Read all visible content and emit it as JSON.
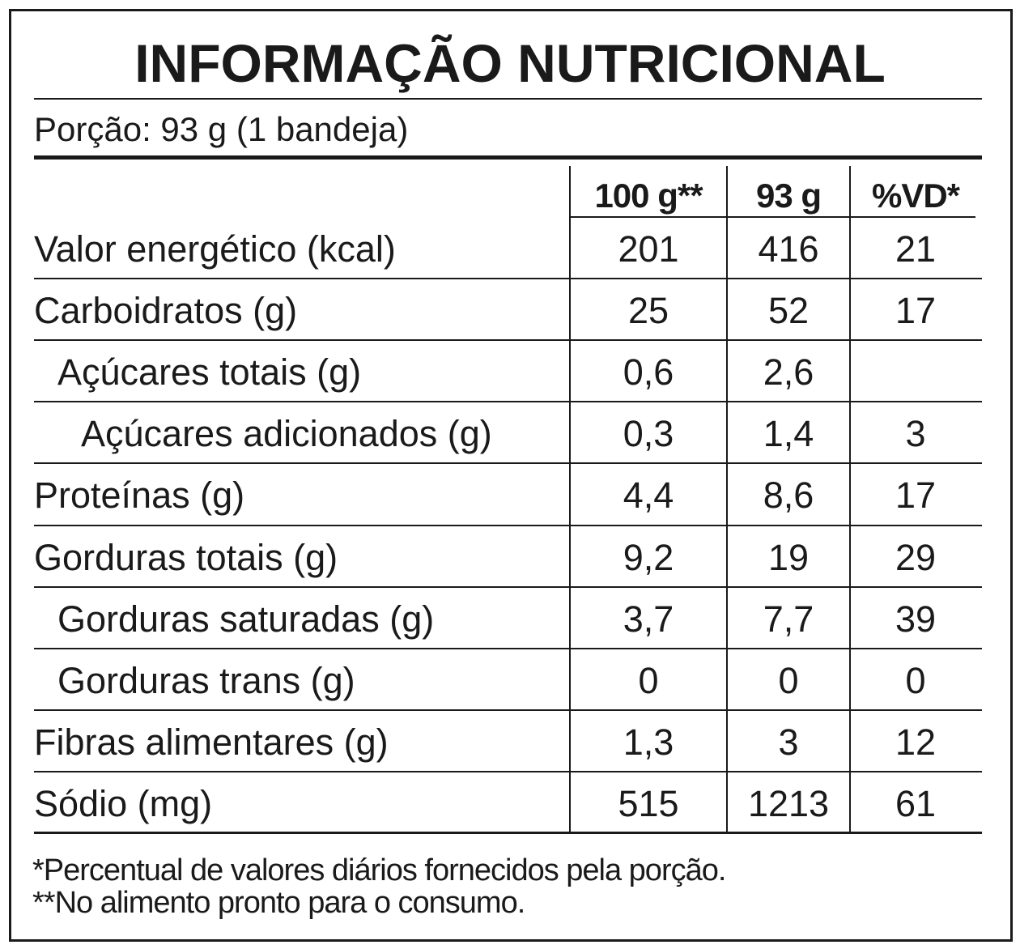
{
  "header": {
    "title": "INFORMAÇÃO NUTRICIONAL",
    "serving": "Porção: 93 g (1 bandeja)"
  },
  "table": {
    "columns": [
      "100 g**",
      "93 g",
      "%VD*"
    ],
    "rows": [
      [
        "Valor energético (kcal)",
        "201",
        "416",
        "21"
      ],
      [
        "Carboidratos (g)",
        "25",
        "52",
        "17"
      ],
      [
        "Açúcares totais (g)",
        "0,6",
        "2,6",
        null
      ],
      [
        "Açúcares adicionados (g)",
        "0,3",
        "1,4",
        "3"
      ],
      [
        "Proteínas (g)",
        "4,4",
        "8,6",
        "17"
      ],
      [
        "Gorduras totais (g)",
        "9,2",
        "19",
        "29"
      ],
      [
        "Gorduras saturadas (g)",
        "3,7",
        "7,7",
        "39"
      ],
      [
        "Gorduras trans (g)",
        "0",
        "0",
        "0"
      ],
      [
        "Fibras alimentares (g)",
        "1,3",
        "3",
        "12"
      ],
      [
        "Sódio (mg)",
        "515",
        "1213",
        "61"
      ]
    ]
  },
  "footnotes": [
    "*Percentual de valores diários fornecidos pela porção.",
    "**No alimento pronto para o consumo."
  ]
}
